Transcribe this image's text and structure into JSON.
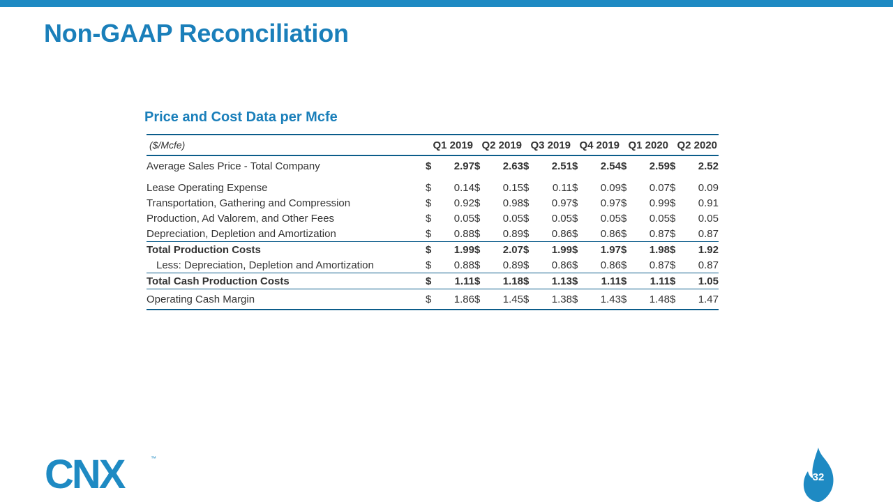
{
  "slide": {
    "title": "Non-GAAP Reconciliation",
    "subtitle": "Price and Cost Data per Mcfe",
    "page_number": "32",
    "accent_color": "#1a7fba",
    "logo_text": "CNX",
    "trademark": "™"
  },
  "table": {
    "unit_label": "($/Mcfe)",
    "columns": [
      "Q1 2019",
      "Q2 2019",
      "Q3 2019",
      "Q4 2019",
      "Q1 2020",
      "Q2 2020"
    ],
    "currency_symbol": "$",
    "rows": [
      {
        "label": "Average Sales Price - Total Company",
        "values": [
          "2.97",
          "2.63",
          "2.51",
          "2.54",
          "2.59",
          "2.52"
        ]
      },
      {
        "label": "Lease Operating Expense",
        "values": [
          "0.14",
          "0.15",
          "0.11",
          "0.09",
          "0.07",
          "0.09"
        ]
      },
      {
        "label": "Transportation, Gathering and Compression",
        "values": [
          "0.92",
          "0.98",
          "0.97",
          "0.97",
          "0.99",
          "0.91"
        ]
      },
      {
        "label": "Production, Ad Valorem, and Other Fees",
        "values": [
          "0.05",
          "0.05",
          "0.05",
          "0.05",
          "0.05",
          "0.05"
        ]
      },
      {
        "label": "Depreciation, Depletion and Amortization",
        "values": [
          "0.88",
          "0.89",
          "0.86",
          "0.86",
          "0.87",
          "0.87"
        ]
      },
      {
        "label": "Total Production Costs",
        "values": [
          "1.99",
          "2.07",
          "1.99",
          "1.97",
          "1.98",
          "1.92"
        ]
      },
      {
        "label": "Less: Depreciation, Depletion and Amortization",
        "values": [
          "0.88",
          "0.89",
          "0.86",
          "0.86",
          "0.87",
          "0.87"
        ]
      },
      {
        "label": "Total Cash Production Costs",
        "values": [
          "1.11",
          "1.18",
          "1.13",
          "1.11",
          "1.11",
          "1.05"
        ]
      },
      {
        "label": "Operating Cash Margin",
        "values": [
          "1.86",
          "1.45",
          "1.38",
          "1.43",
          "1.48",
          "1.47"
        ]
      }
    ]
  }
}
